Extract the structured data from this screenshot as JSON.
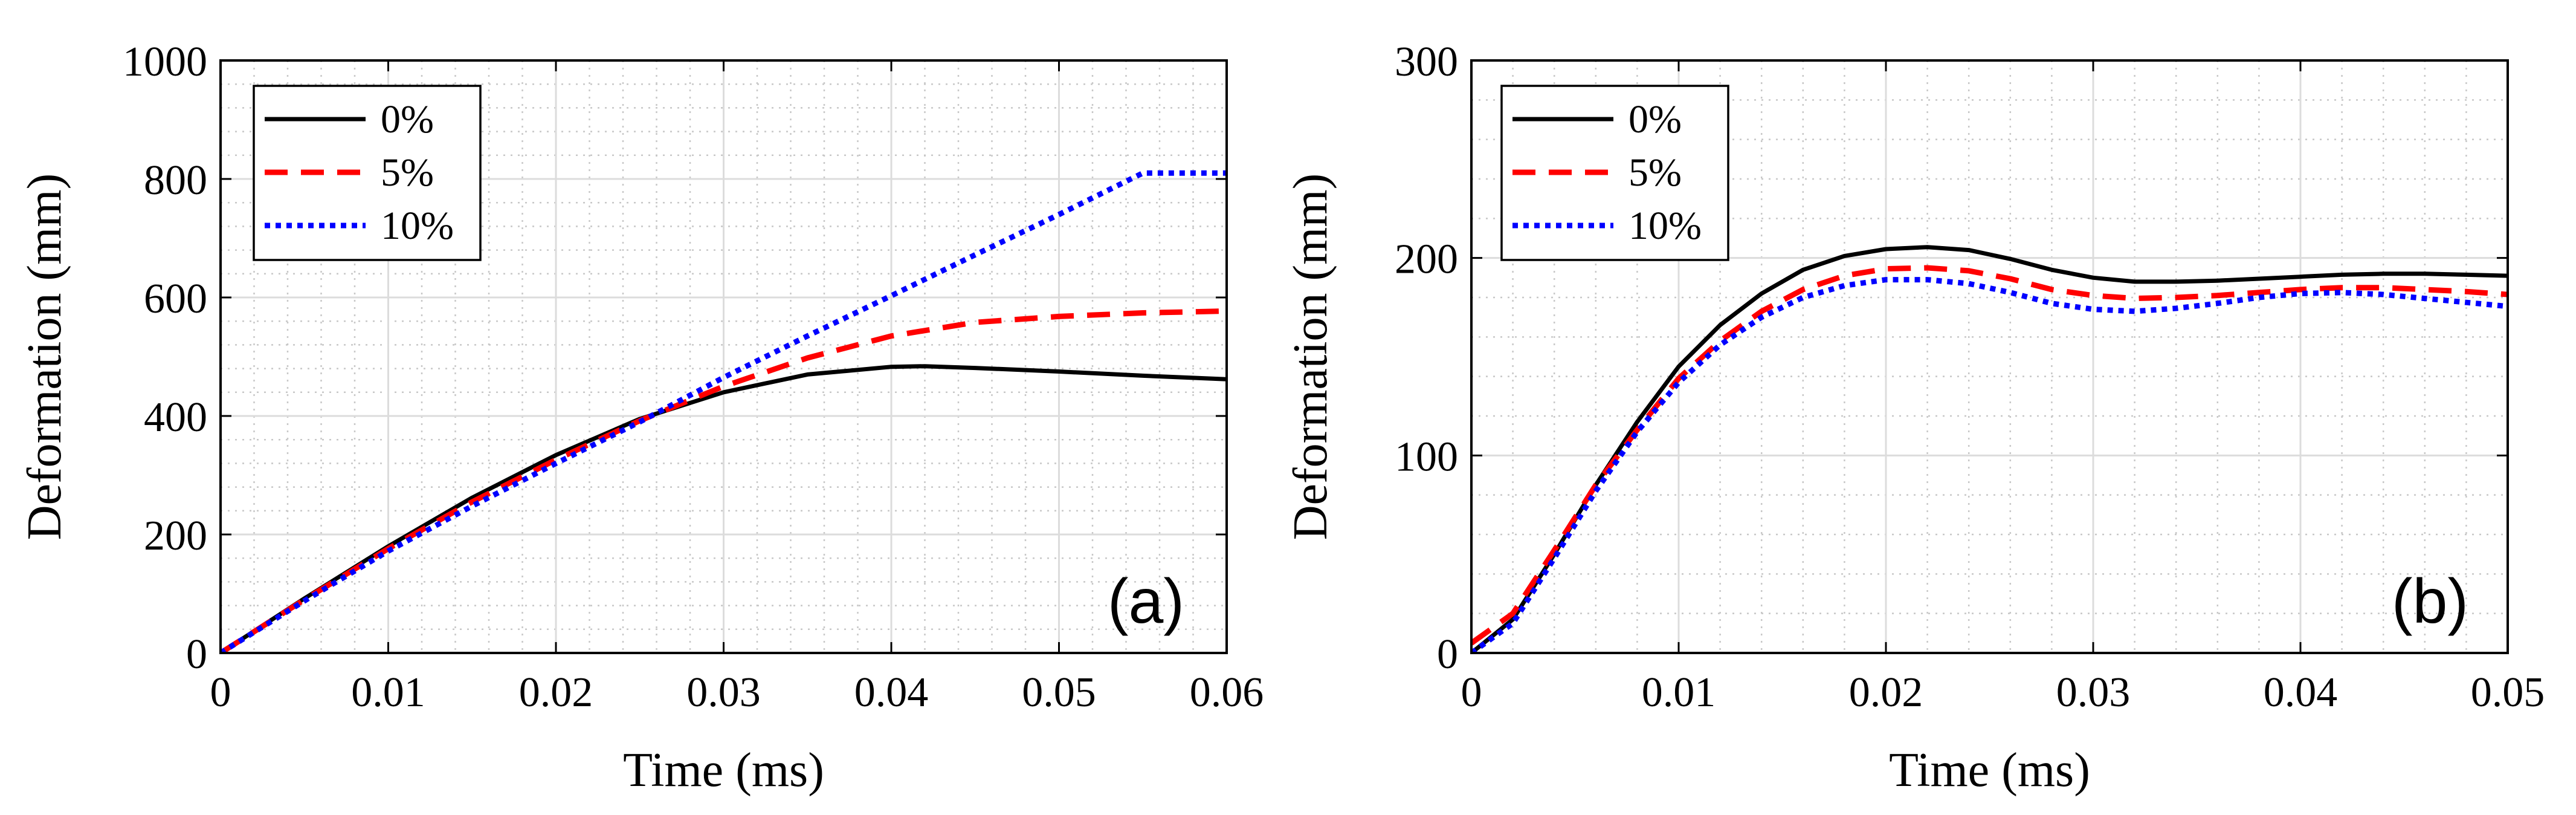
{
  "chart_data": [
    {
      "type": "line",
      "panel_label": "(a)",
      "xlabel": "Time (ms)",
      "ylabel": "Deformation (mm)",
      "xlim": [
        0,
        0.06
      ],
      "ylim": [
        0,
        1000
      ],
      "xticks": [
        0,
        0.01,
        0.02,
        0.03,
        0.04,
        0.05,
        0.06
      ],
      "xtick_labels": [
        "0",
        "0.01",
        "0.02",
        "0.03",
        "0.04",
        "0.05",
        "0.06"
      ],
      "yticks": [
        0,
        200,
        400,
        600,
        800,
        1000
      ],
      "ytick_labels": [
        "0",
        "200",
        "400",
        "600",
        "800",
        "1000"
      ],
      "grid": true,
      "minor_grid": true,
      "legend_position": "top-left",
      "series": [
        {
          "name": "0%",
          "color": "#000000",
          "style": "solid",
          "x": [
            0,
            0.005,
            0.01,
            0.015,
            0.02,
            0.025,
            0.03,
            0.035,
            0.04,
            0.042,
            0.045,
            0.05,
            0.055,
            0.06
          ],
          "y": [
            0,
            92,
            180,
            262,
            334,
            395,
            440,
            470,
            483,
            484,
            481,
            475,
            468,
            462
          ]
        },
        {
          "name": "5%",
          "color": "#ff0000",
          "style": "dashed",
          "x": [
            0,
            0.005,
            0.01,
            0.015,
            0.02,
            0.025,
            0.03,
            0.035,
            0.04,
            0.045,
            0.05,
            0.055,
            0.06
          ],
          "y": [
            0,
            90,
            176,
            255,
            326,
            392,
            450,
            498,
            535,
            558,
            568,
            574,
            577
          ]
        },
        {
          "name": "10%",
          "color": "#0000ff",
          "style": "dotted",
          "x": [
            0,
            0.005,
            0.01,
            0.015,
            0.02,
            0.025,
            0.03,
            0.035,
            0.04,
            0.045,
            0.05,
            0.055,
            0.06
          ],
          "y": [
            0,
            88,
            172,
            248,
            320,
            390,
            465,
            535,
            603,
            672,
            740,
            810,
            810
          ]
        }
      ]
    },
    {
      "type": "line",
      "panel_label": "(b)",
      "xlabel": "Time (ms)",
      "ylabel": "Deformation (mm)",
      "xlim": [
        0,
        0.05
      ],
      "ylim": [
        0,
        300
      ],
      "xticks": [
        0,
        0.01,
        0.02,
        0.03,
        0.04,
        0.05
      ],
      "xtick_labels": [
        "0",
        "0.01",
        "0.02",
        "0.03",
        "0.04",
        "0.05"
      ],
      "yticks": [
        0,
        100,
        200,
        300
      ],
      "ytick_labels": [
        "0",
        "100",
        "200",
        "300"
      ],
      "grid": true,
      "minor_grid": true,
      "legend_position": "top-left",
      "series": [
        {
          "name": "0%",
          "color": "#000000",
          "style": "solid",
          "x": [
            0,
            0.002,
            0.004,
            0.006,
            0.008,
            0.01,
            0.012,
            0.014,
            0.016,
            0.018,
            0.02,
            0.022,
            0.024,
            0.026,
            0.028,
            0.03,
            0.032,
            0.034,
            0.036,
            0.038,
            0.04,
            0.042,
            0.044,
            0.046,
            0.048,
            0.05
          ],
          "y": [
            0,
            17,
            50,
            85,
            117,
            145,
            166,
            182,
            194,
            201,
            204.5,
            205.5,
            204,
            199.5,
            194,
            190,
            188,
            188,
            188.5,
            189.5,
            190.5,
            191.5,
            192,
            192,
            191.5,
            191
          ]
        },
        {
          "name": "5%",
          "color": "#ff0000",
          "style": "dashed",
          "x": [
            0,
            0.002,
            0.004,
            0.006,
            0.008,
            0.01,
            0.012,
            0.014,
            0.016,
            0.018,
            0.02,
            0.022,
            0.024,
            0.026,
            0.028,
            0.03,
            0.032,
            0.034,
            0.036,
            0.038,
            0.04,
            0.042,
            0.044,
            0.046,
            0.048,
            0.05
          ],
          "y": [
            5,
            20,
            52,
            85,
            113,
            139,
            158,
            173,
            184,
            191,
            194.5,
            195,
            193.5,
            189.5,
            184,
            181,
            179.5,
            180,
            181,
            182.5,
            184,
            185,
            185,
            184,
            183,
            181.5
          ]
        },
        {
          "name": "10%",
          "color": "#0000ff",
          "style": "dotted",
          "x": [
            0,
            0.002,
            0.004,
            0.006,
            0.008,
            0.01,
            0.012,
            0.014,
            0.016,
            0.018,
            0.02,
            0.022,
            0.024,
            0.026,
            0.028,
            0.03,
            0.032,
            0.034,
            0.036,
            0.038,
            0.04,
            0.042,
            0.044,
            0.046,
            0.048,
            0.05
          ],
          "y": [
            0,
            15,
            48,
            82,
            112,
            137,
            156,
            170,
            180,
            186,
            189,
            189,
            187,
            182.5,
            177,
            174,
            173,
            174.5,
            177,
            180,
            182,
            182.5,
            181.5,
            179.5,
            177.5,
            175.5
          ]
        }
      ]
    }
  ]
}
